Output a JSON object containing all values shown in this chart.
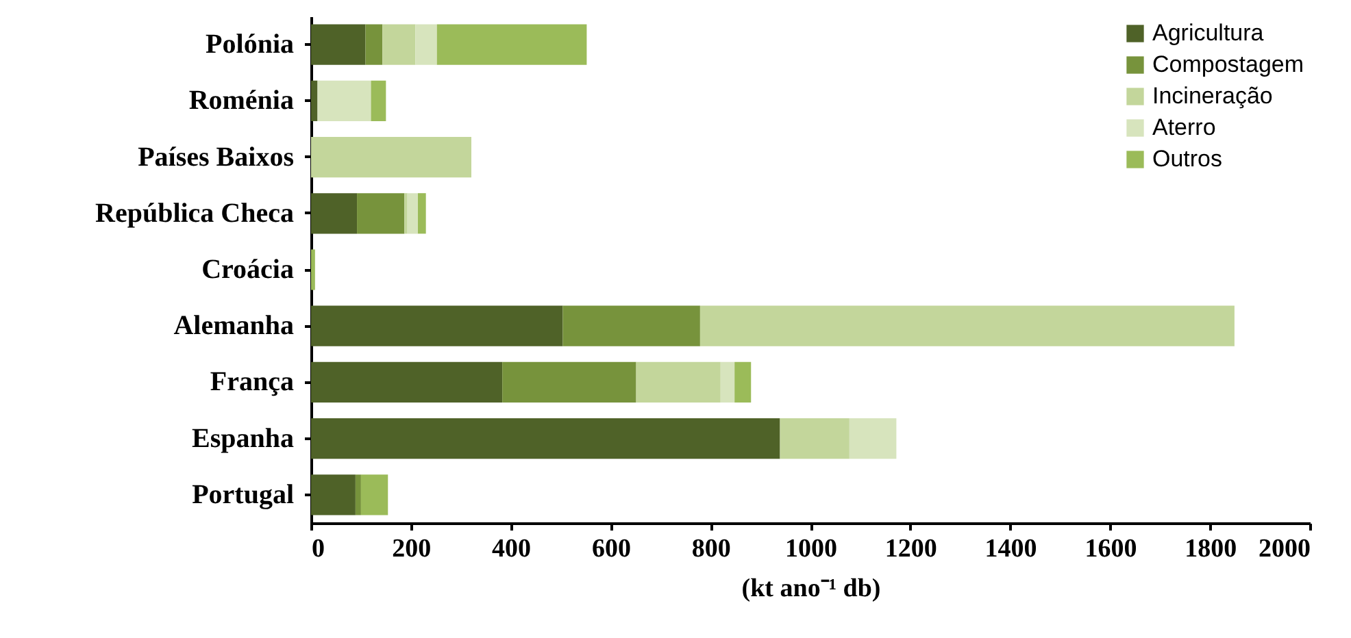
{
  "chart_data": {
    "type": "bar",
    "orientation": "horizontal",
    "stacked": true,
    "xlabel": "(kt ano⁻¹ db)",
    "categories": [
      "Polónia",
      "Roménia",
      "Países Baixos",
      "República Checa",
      "Croácia",
      "Alemanha",
      "França",
      "Espanha",
      "Portugal"
    ],
    "series": [
      {
        "name": "Agricultura",
        "color": "#4f6228",
        "values": [
          109,
          13,
          0,
          92,
          0,
          504,
          383,
          939,
          89
        ]
      },
      {
        "name": "Compostagem",
        "color": "#77933c",
        "values": [
          34,
          0,
          0,
          95,
          0,
          275,
          268,
          0,
          11
        ]
      },
      {
        "name": "Incineração",
        "color": "#c3d69b",
        "values": [
          66,
          0,
          321,
          6,
          0,
          1070,
          169,
          139,
          0
        ]
      },
      {
        "name": "Aterro",
        "color": "#d7e4bd",
        "values": [
          43,
          107,
          0,
          21,
          0,
          0,
          28,
          94,
          0
        ]
      },
      {
        "name": "Outros",
        "color": "#9bbb59",
        "values": [
          300,
          30,
          0,
          16,
          8,
          0,
          33,
          0,
          54
        ]
      }
    ],
    "xlim": [
      0,
      2000
    ],
    "xticks": [
      0,
      200,
      400,
      600,
      800,
      1000,
      1200,
      1400,
      1600,
      1800,
      2000
    ],
    "grid": false,
    "legend": "top right"
  }
}
